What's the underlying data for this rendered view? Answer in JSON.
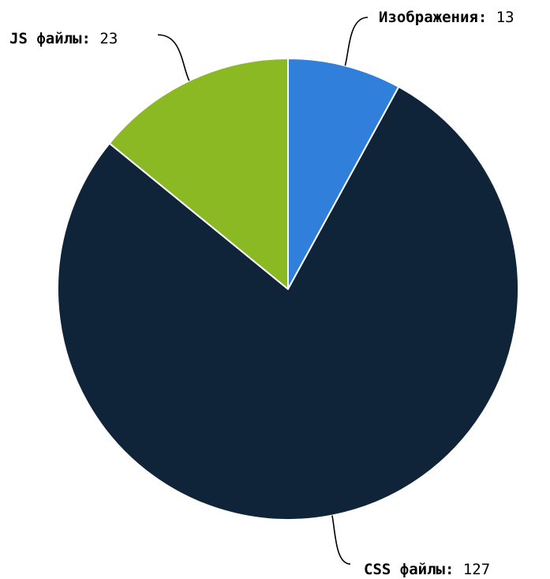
{
  "chart_data": {
    "type": "pie",
    "slices": [
      {
        "label": "Изображения",
        "value": 13,
        "color": "#2f7fdb"
      },
      {
        "label": "CSS файлы",
        "value": 127,
        "color": "#0f2339"
      },
      {
        "label": "JS файлы",
        "value": 23,
        "color": "#8ab923"
      }
    ],
    "label_separator": ":",
    "slice_border_color": "#ffffff",
    "leader_line_color": "#000000",
    "start": "top",
    "direction": "clockwise"
  }
}
